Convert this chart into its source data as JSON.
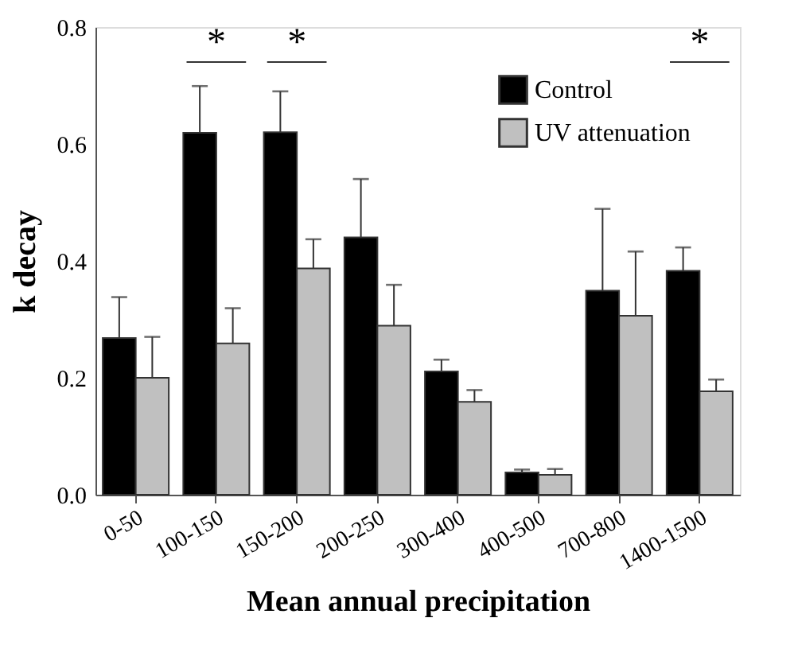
{
  "chart_data": {
    "type": "bar",
    "xlabel": "Mean annual precipitation",
    "ylabel": "k decay",
    "categories": [
      "0-50",
      "100-150",
      "150-200",
      "200-250",
      "300-400",
      "400-500",
      "700-800",
      "1400-1500"
    ],
    "series": [
      {
        "name": "Control",
        "color": "#000000",
        "values": [
          0.268,
          0.619,
          0.62,
          0.44,
          0.211,
          0.038,
          0.349,
          0.383
        ],
        "errors": [
          0.07,
          0.08,
          0.07,
          0.1,
          0.02,
          0.005,
          0.14,
          0.04
        ]
      },
      {
        "name": "UV attenuation",
        "color": "#c0c0c0",
        "values": [
          0.2,
          0.259,
          0.387,
          0.289,
          0.159,
          0.034,
          0.306,
          0.177
        ],
        "errors": [
          0.07,
          0.06,
          0.05,
          0.07,
          0.02,
          0.01,
          0.11,
          0.02
        ]
      }
    ],
    "annotations": [
      "*",
      "*",
      "*"
    ],
    "ylim": [
      0,
      0.8
    ],
    "yticks": [
      {
        "value": 0,
        "label": "0.0"
      },
      0.2,
      0.4,
      0.6,
      0.8
    ],
    "grid": false,
    "legend": "top right"
  }
}
